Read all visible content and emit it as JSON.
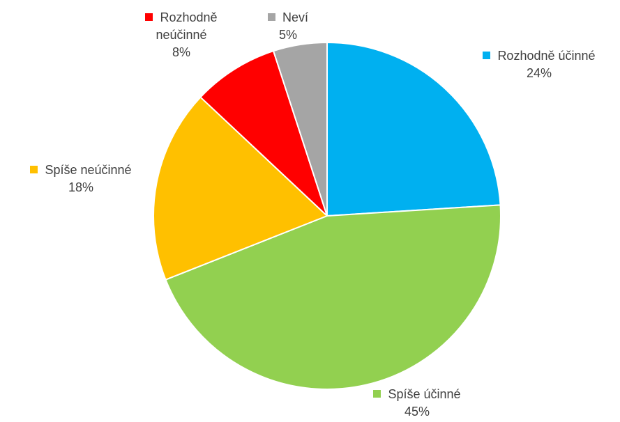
{
  "chart_data": {
    "type": "pie",
    "slices": [
      {
        "name": "Rozhodně účinné",
        "value": 24,
        "label": "24%",
        "color": "#00B0F0"
      },
      {
        "name": "Spíše účinné",
        "value": 45,
        "label": "45%",
        "color": "#92D050"
      },
      {
        "name": "Spíše neúčinné",
        "value": 18,
        "label": "18%",
        "color": "#FFC000"
      },
      {
        "name": "Rozhodně neúčinné",
        "value": 8,
        "label": "8%",
        "color": "#FF0000"
      },
      {
        "name": "Neví",
        "value": 5,
        "label": "5%",
        "color": "#A5A5A5"
      }
    ],
    "start_angle_deg": 0,
    "direction": "clockwise",
    "legend": "data-labels"
  }
}
